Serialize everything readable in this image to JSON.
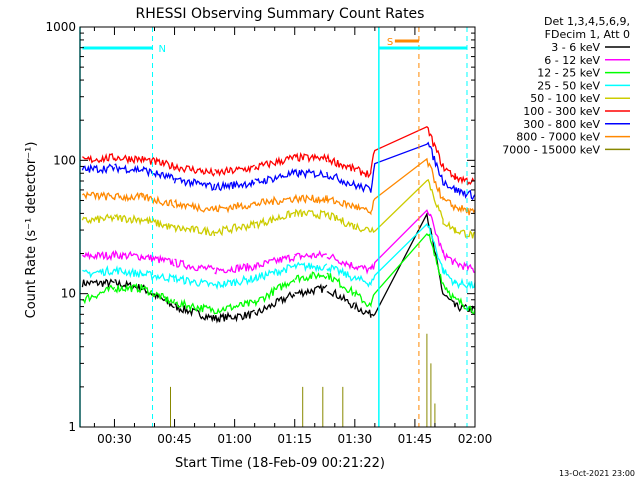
{
  "chart_data": {
    "type": "line",
    "title": "RHESSI Observing Summary Count Rates",
    "xlabel": "Start Time (18-Feb-09 00:21:22)",
    "ylabel": "Count Rate (s⁻¹ detector⁻¹)",
    "yscale": "log",
    "ylim": [
      1,
      1000
    ],
    "xlim_minutes_after_00:00": [
      21.4,
      120
    ],
    "x_ticks": [
      "00:30",
      "00:45",
      "01:00",
      "01:15",
      "01:30",
      "01:45",
      "02:00"
    ],
    "y_ticks": [
      "1",
      "10",
      "100",
      "1000"
    ],
    "grid": false,
    "legend_position": "right",
    "legend_header": [
      "Det 1,3,4,5,6,9,",
      "FDecim 1, Att 0"
    ],
    "series": [
      {
        "name": "3 - 6 keV",
        "color": "#000000",
        "points": [
          [
            22,
            12
          ],
          [
            30,
            12
          ],
          [
            37,
            11
          ],
          [
            45,
            8
          ],
          [
            55,
            6.5
          ],
          [
            65,
            7
          ],
          [
            75,
            10
          ],
          [
            83,
            11
          ],
          [
            90,
            8
          ],
          [
            94,
            7
          ],
          [
            95,
            7.5
          ],
          [
            108,
            40
          ],
          [
            112,
            10
          ],
          [
            115,
            8
          ],
          [
            120,
            7.5
          ]
        ]
      },
      {
        "name": "6 - 12 keV",
        "color": "#ff00ff",
        "points": [
          [
            22,
            19
          ],
          [
            30,
            19.5
          ],
          [
            37,
            19
          ],
          [
            45,
            17
          ],
          [
            55,
            15
          ],
          [
            65,
            16
          ],
          [
            75,
            19
          ],
          [
            83,
            19.5
          ],
          [
            90,
            16
          ],
          [
            94,
            15
          ],
          [
            95,
            16
          ],
          [
            108,
            45
          ],
          [
            112,
            20
          ],
          [
            115,
            17
          ],
          [
            120,
            15
          ]
        ]
      },
      {
        "name": "12 - 25 keV",
        "color": "#00ff00",
        "points": [
          [
            22,
            9
          ],
          [
            30,
            11
          ],
          [
            37,
            11
          ],
          [
            45,
            8.5
          ],
          [
            55,
            7.5
          ],
          [
            65,
            8.5
          ],
          [
            75,
            13
          ],
          [
            83,
            14
          ],
          [
            90,
            10
          ],
          [
            94,
            8
          ],
          [
            95,
            10
          ],
          [
            108,
            30
          ],
          [
            112,
            12
          ],
          [
            115,
            9
          ],
          [
            120,
            7.5
          ]
        ]
      },
      {
        "name": "25 - 50 keV",
        "color": "#00ffff",
        "points": [
          [
            22,
            14
          ],
          [
            30,
            15
          ],
          [
            37,
            14
          ],
          [
            45,
            13
          ],
          [
            55,
            11.5
          ],
          [
            65,
            13
          ],
          [
            75,
            16
          ],
          [
            83,
            16
          ],
          [
            90,
            13
          ],
          [
            94,
            12
          ],
          [
            95,
            13
          ],
          [
            108,
            35
          ],
          [
            112,
            15
          ],
          [
            115,
            12
          ],
          [
            120,
            11.5
          ]
        ]
      },
      {
        "name": "50 - 100 keV",
        "color": "#cccc00",
        "points": [
          [
            22,
            35
          ],
          [
            30,
            37
          ],
          [
            37,
            36
          ],
          [
            45,
            31
          ],
          [
            55,
            29
          ],
          [
            65,
            33
          ],
          [
            75,
            40
          ],
          [
            83,
            39
          ],
          [
            90,
            32
          ],
          [
            94,
            30
          ],
          [
            95,
            31
          ],
          [
            108,
            75
          ],
          [
            112,
            35
          ],
          [
            115,
            30
          ],
          [
            120,
            27
          ]
        ]
      },
      {
        "name": "100 - 300 keV",
        "color": "#ff0000",
        "points": [
          [
            22,
            100
          ],
          [
            30,
            105
          ],
          [
            37,
            102
          ],
          [
            45,
            90
          ],
          [
            55,
            80
          ],
          [
            65,
            88
          ],
          [
            75,
            105
          ],
          [
            83,
            103
          ],
          [
            90,
            85
          ],
          [
            94,
            78
          ],
          [
            95,
            125
          ],
          [
            108,
            175
          ],
          [
            112,
            90
          ],
          [
            115,
            75
          ],
          [
            120,
            68
          ]
        ]
      },
      {
        "name": "300 - 800 keV",
        "color": "#0000ff",
        "points": [
          [
            22,
            85
          ],
          [
            30,
            88
          ],
          [
            37,
            85
          ],
          [
            45,
            72
          ],
          [
            55,
            63
          ],
          [
            65,
            68
          ],
          [
            75,
            80
          ],
          [
            83,
            79
          ],
          [
            90,
            65
          ],
          [
            94,
            60
          ],
          [
            95,
            100
          ],
          [
            108,
            140
          ],
          [
            112,
            70
          ],
          [
            115,
            60
          ],
          [
            120,
            54
          ]
        ]
      },
      {
        "name": "800 - 7000 keV",
        "color": "#ff8800",
        "points": [
          [
            22,
            55
          ],
          [
            30,
            53
          ],
          [
            37,
            53
          ],
          [
            45,
            47
          ],
          [
            55,
            43
          ],
          [
            65,
            47
          ],
          [
            75,
            52
          ],
          [
            83,
            51
          ],
          [
            90,
            45
          ],
          [
            94,
            40
          ],
          [
            95,
            50
          ],
          [
            108,
            100
          ],
          [
            112,
            50
          ],
          [
            115,
            45
          ],
          [
            120,
            40
          ]
        ]
      },
      {
        "name": "7000 - 15000 keV",
        "color": "#888800",
        "points": [
          [
            44,
            2
          ],
          [
            77,
            2
          ],
          [
            82,
            2
          ],
          [
            87,
            2
          ],
          [
            108,
            5
          ],
          [
            109,
            3
          ],
          [
            110,
            1.5
          ]
        ]
      }
    ],
    "annotations": [
      {
        "label": "N",
        "start": 22,
        "end": 39.5,
        "color": "#00ffff"
      },
      {
        "label": "S",
        "start": 100,
        "end": 106,
        "color": "#ff8800"
      }
    ]
  },
  "footer_date": "13-Oct-2021 23:00"
}
